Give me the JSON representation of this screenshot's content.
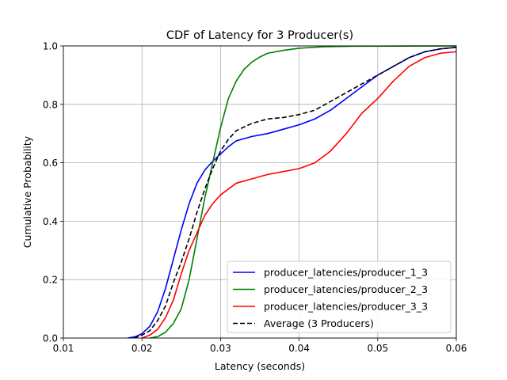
{
  "chart_data": {
    "type": "line",
    "title": "CDF of Latency for 3 Producer(s)",
    "xlabel": "Latency (seconds)",
    "ylabel": "Cumulative Probability",
    "xlim": [
      0.01,
      0.06
    ],
    "ylim": [
      0.0,
      1.0
    ],
    "xticks": [
      "0.01",
      "0.02",
      "0.03",
      "0.04",
      "0.05",
      "0.06"
    ],
    "yticks": [
      "0.0",
      "0.2",
      "0.4",
      "0.6",
      "0.8",
      "1.0"
    ],
    "grid": true,
    "legend_position": "lower-right",
    "series": [
      {
        "name": "producer_latencies/producer_1_3",
        "color": "#0000ff",
        "style": "solid",
        "points": [
          [
            0.0182,
            0.0
          ],
          [
            0.0192,
            0.005
          ],
          [
            0.02,
            0.015
          ],
          [
            0.021,
            0.04
          ],
          [
            0.022,
            0.09
          ],
          [
            0.023,
            0.17
          ],
          [
            0.024,
            0.27
          ],
          [
            0.025,
            0.37
          ],
          [
            0.026,
            0.46
          ],
          [
            0.027,
            0.53
          ],
          [
            0.028,
            0.575
          ],
          [
            0.029,
            0.605
          ],
          [
            0.03,
            0.63
          ],
          [
            0.031,
            0.655
          ],
          [
            0.032,
            0.675
          ],
          [
            0.034,
            0.69
          ],
          [
            0.036,
            0.7
          ],
          [
            0.038,
            0.715
          ],
          [
            0.04,
            0.73
          ],
          [
            0.042,
            0.75
          ],
          [
            0.044,
            0.78
          ],
          [
            0.046,
            0.82
          ],
          [
            0.048,
            0.86
          ],
          [
            0.05,
            0.9
          ],
          [
            0.052,
            0.93
          ],
          [
            0.054,
            0.96
          ],
          [
            0.056,
            0.98
          ],
          [
            0.058,
            0.99
          ],
          [
            0.06,
            0.995
          ]
        ]
      },
      {
        "name": "producer_latencies/producer_2_3",
        "color": "#008000",
        "style": "solid",
        "points": [
          [
            0.021,
            0.0
          ],
          [
            0.022,
            0.005
          ],
          [
            0.023,
            0.02
          ],
          [
            0.024,
            0.05
          ],
          [
            0.025,
            0.1
          ],
          [
            0.026,
            0.2
          ],
          [
            0.027,
            0.34
          ],
          [
            0.028,
            0.48
          ],
          [
            0.029,
            0.6
          ],
          [
            0.03,
            0.72
          ],
          [
            0.031,
            0.82
          ],
          [
            0.032,
            0.88
          ],
          [
            0.033,
            0.92
          ],
          [
            0.034,
            0.945
          ],
          [
            0.035,
            0.962
          ],
          [
            0.036,
            0.975
          ],
          [
            0.038,
            0.985
          ],
          [
            0.04,
            0.992
          ],
          [
            0.043,
            0.997
          ],
          [
            0.047,
            0.999
          ],
          [
            0.06,
            1.0
          ]
        ]
      },
      {
        "name": "producer_latencies/producer_3_3",
        "color": "#ff0000",
        "style": "solid",
        "points": [
          [
            0.02,
            0.0
          ],
          [
            0.021,
            0.01
          ],
          [
            0.022,
            0.03
          ],
          [
            0.023,
            0.07
          ],
          [
            0.024,
            0.13
          ],
          [
            0.025,
            0.22
          ],
          [
            0.026,
            0.3
          ],
          [
            0.027,
            0.36
          ],
          [
            0.028,
            0.42
          ],
          [
            0.029,
            0.46
          ],
          [
            0.03,
            0.49
          ],
          [
            0.031,
            0.51
          ],
          [
            0.032,
            0.53
          ],
          [
            0.034,
            0.545
          ],
          [
            0.036,
            0.56
          ],
          [
            0.038,
            0.57
          ],
          [
            0.04,
            0.58
          ],
          [
            0.042,
            0.6
          ],
          [
            0.044,
            0.64
          ],
          [
            0.046,
            0.7
          ],
          [
            0.048,
            0.77
          ],
          [
            0.05,
            0.82
          ],
          [
            0.052,
            0.88
          ],
          [
            0.054,
            0.93
          ],
          [
            0.056,
            0.96
          ],
          [
            0.058,
            0.975
          ],
          [
            0.06,
            0.98
          ]
        ]
      },
      {
        "name": "Average (3 Producers)",
        "color": "#000000",
        "style": "dashed",
        "points": [
          [
            0.019,
            0.0
          ],
          [
            0.02,
            0.01
          ],
          [
            0.021,
            0.025
          ],
          [
            0.022,
            0.06
          ],
          [
            0.023,
            0.11
          ],
          [
            0.024,
            0.19
          ],
          [
            0.025,
            0.26
          ],
          [
            0.026,
            0.34
          ],
          [
            0.027,
            0.43
          ],
          [
            0.028,
            0.51
          ],
          [
            0.029,
            0.58
          ],
          [
            0.03,
            0.64
          ],
          [
            0.031,
            0.68
          ],
          [
            0.032,
            0.71
          ],
          [
            0.034,
            0.735
          ],
          [
            0.036,
            0.75
          ],
          [
            0.038,
            0.755
          ],
          [
            0.04,
            0.765
          ],
          [
            0.042,
            0.78
          ],
          [
            0.044,
            0.81
          ],
          [
            0.046,
            0.84
          ],
          [
            0.048,
            0.87
          ],
          [
            0.05,
            0.9
          ],
          [
            0.052,
            0.93
          ],
          [
            0.054,
            0.96
          ],
          [
            0.056,
            0.98
          ],
          [
            0.058,
            0.99
          ],
          [
            0.06,
            0.995
          ]
        ]
      }
    ]
  }
}
